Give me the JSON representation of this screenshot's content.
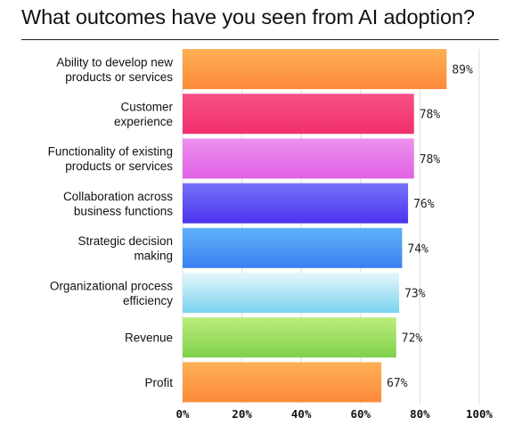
{
  "chart_data": {
    "type": "bar",
    "orientation": "horizontal",
    "title": "What outcomes have you seen from AI adoption?",
    "categories": [
      [
        "Ability to develop new",
        "products or services"
      ],
      [
        "Customer",
        "experience"
      ],
      [
        "Functionality of existing",
        "products or services"
      ],
      [
        "Collaboration across",
        "business functions"
      ],
      [
        "Strategic decision",
        "making"
      ],
      [
        "Organizational process",
        "efficiency"
      ],
      [
        "Revenue"
      ],
      [
        "Profit"
      ]
    ],
    "values": [
      89,
      78,
      78,
      76,
      74,
      73,
      72,
      67
    ],
    "value_labels": [
      "89%",
      "78%",
      "78%",
      "76%",
      "74%",
      "73%",
      "72%",
      "67%"
    ],
    "xlim": [
      0,
      100
    ],
    "ticks": [
      0,
      20,
      40,
      60,
      80,
      100
    ],
    "tick_labels": [
      "0%",
      "20%",
      "40%",
      "60%",
      "80%",
      "100%"
    ],
    "grid": true,
    "bar_colors": [
      [
        "#fdb054",
        "#fd8a3a"
      ],
      [
        "#f75185",
        "#f12f6d"
      ],
      [
        "#ec92ec",
        "#e161e6"
      ],
      [
        "#7472f8",
        "#4d33ee"
      ],
      [
        "#5fb2f8",
        "#3a7ef2"
      ],
      [
        "#e6f7fd",
        "#7ad3ee"
      ],
      [
        "#bcee7d",
        "#7fd04a"
      ],
      [
        "#fdb054",
        "#fd8a3a"
      ]
    ]
  }
}
